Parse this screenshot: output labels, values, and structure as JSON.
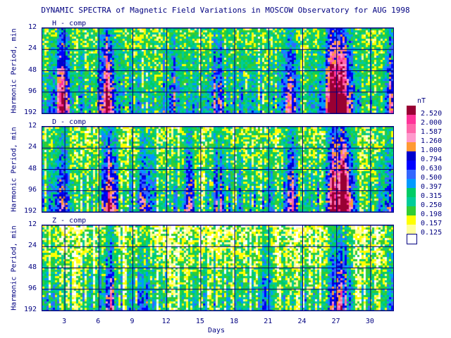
{
  "title": "DYNAMIC SPECTRA of Magnetic Field Variations in MOSCOW Observatory for AUG 1998",
  "chart_data": {
    "type": "heatmap",
    "xlabel": "Days",
    "ylabel": "Harmonic Period, min",
    "xlim": [
      1,
      32
    ],
    "x_ticks": [
      "3",
      "6",
      "9",
      "12",
      "15",
      "18",
      "21",
      "24",
      "27",
      "30"
    ],
    "y_ticks": [
      "12",
      "24",
      "48",
      "96",
      "192"
    ],
    "y_scale": "log2",
    "grid": true,
    "panels": [
      {
        "name": "H - comp",
        "activity": [
          [
            2.7,
            2.2
          ],
          [
            6.7,
            2.6
          ],
          [
            12.5,
            1.2
          ],
          [
            16.4,
            1.1
          ],
          [
            22.6,
            1.5
          ],
          [
            26.5,
            3.0
          ],
          [
            27.5,
            3.2
          ],
          [
            31.6,
            1.4
          ]
        ],
        "base": 0.45
      },
      {
        "name": "D - comp",
        "activity": [
          [
            2.7,
            1.6
          ],
          [
            6.8,
            2.4
          ],
          [
            10.0,
            1.3
          ],
          [
            13.8,
            1.2
          ],
          [
            16.6,
            1.0
          ],
          [
            23.0,
            1.5
          ],
          [
            26.6,
            2.8
          ],
          [
            27.6,
            3.0
          ],
          [
            31.5,
            1.2
          ]
        ],
        "base": 0.35
      },
      {
        "name": "Z - comp",
        "activity": [
          [
            6.8,
            1.6
          ],
          [
            10.0,
            0.8
          ],
          [
            20.5,
            0.9
          ],
          [
            26.8,
            1.4
          ],
          [
            27.6,
            1.3
          ],
          [
            31.7,
            0.9
          ]
        ],
        "base": 0.18
      }
    ],
    "colorbar": {
      "unit": "nT",
      "levels": [
        "2.520",
        "2.000",
        "1.587",
        "1.260",
        "1.000",
        "0.794",
        "0.630",
        "0.500",
        "0.397",
        "0.315",
        "0.250",
        "0.198",
        "0.157",
        "0.125"
      ],
      "colors": [
        "#990033",
        "#ff3399",
        "#ff66aa",
        "#ff99cc",
        "#ff9933",
        "#0000cc",
        "#0000ff",
        "#3366ff",
        "#0099ff",
        "#00cc66",
        "#00cc99",
        "#33cc33",
        "#ffff00",
        "#ffff99",
        "#ffffff"
      ]
    }
  }
}
